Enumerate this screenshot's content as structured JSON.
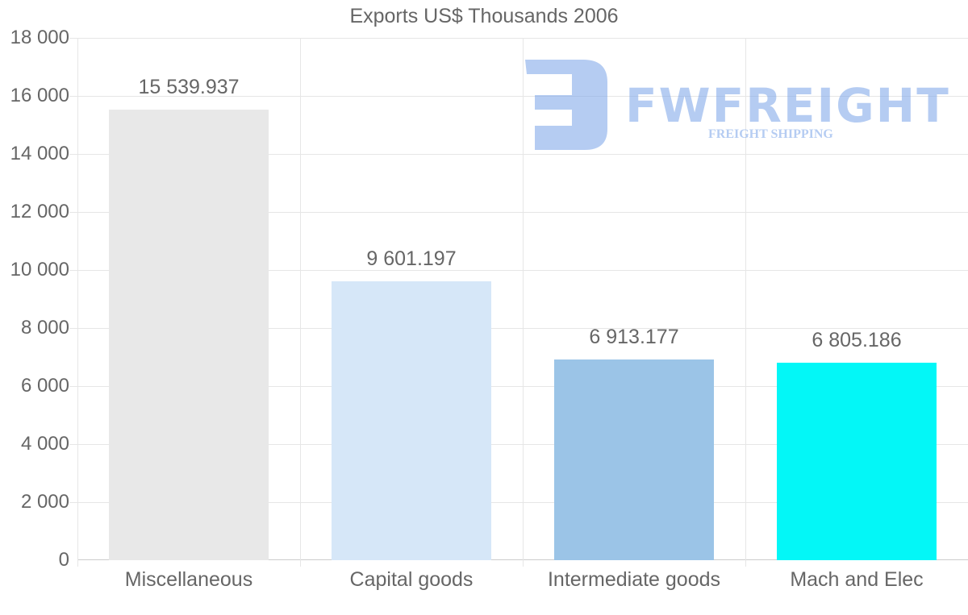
{
  "chart_data": {
    "type": "bar",
    "title": "Exports US$ Thousands 2006",
    "categories": [
      "Miscellaneous",
      "Capital goods",
      "Intermediate goods",
      "Mach and Elec"
    ],
    "values": [
      15539.937,
      9601.197,
      6913.177,
      6805.186
    ],
    "value_labels": [
      "15 539.937",
      "9 601.197",
      "6 913.177",
      "6 805.186"
    ],
    "colors": [
      "#e8e8e8",
      "#d6e7f8",
      "#9bc4e7",
      "#03f7f7"
    ],
    "xlabel": "",
    "ylabel": "",
    "ylim": [
      0,
      18000
    ],
    "yticks": [
      0,
      2000,
      4000,
      6000,
      8000,
      10000,
      12000,
      14000,
      16000,
      18000
    ],
    "ytick_labels": [
      "0",
      "2 000",
      "4 000",
      "6 000",
      "8 000",
      "10 000",
      "12 000",
      "14 000",
      "16 000",
      "18 000"
    ],
    "grid": true,
    "legend": "none"
  },
  "watermark": {
    "brand": "FWFREIGHT",
    "tagline": "FREIGHT SHIPPING",
    "color": "#78a2e8"
  }
}
